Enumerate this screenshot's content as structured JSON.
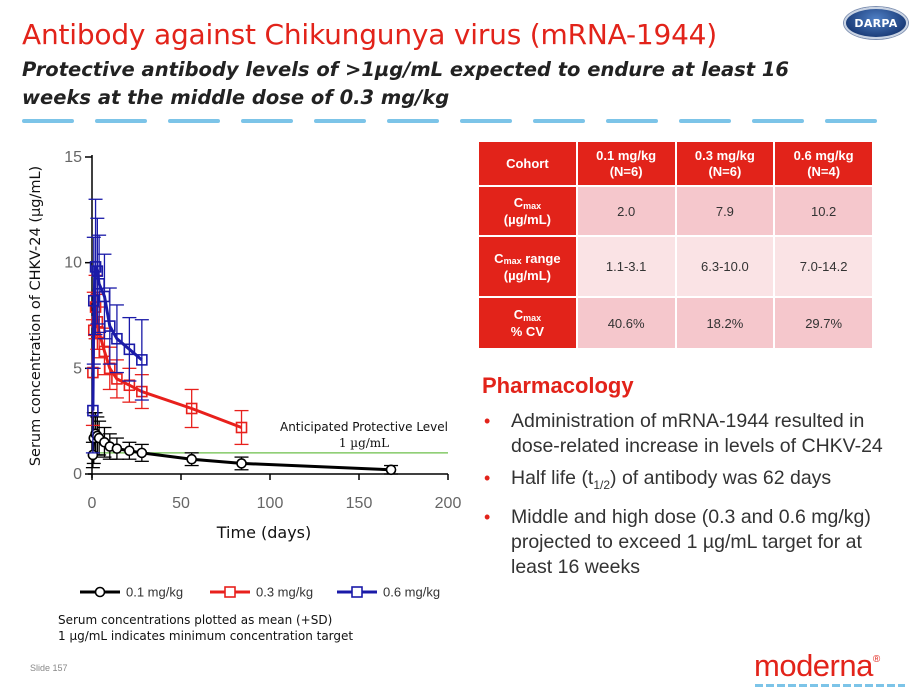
{
  "header": {
    "title": "Antibody against Chikungunya virus (mRNA-1944)",
    "subtitle": "Protective antibody levels of >1µg/mL expected to endure at least 16 weeks at the middle dose of 0.3 mg/kg",
    "logo_text": "DARPA"
  },
  "chart_data": {
    "type": "line",
    "xlabel": "Time (days)",
    "ylabel": "Serum concentration of CHKV-24 (µg/mL)",
    "xlim": [
      0,
      200
    ],
    "ylim": [
      0,
      15
    ],
    "xticks": [
      0,
      50,
      100,
      150,
      200
    ],
    "yticks": [
      0,
      5,
      10,
      15
    ],
    "grid": false,
    "legend_position": "bottom",
    "series": [
      {
        "name": "0.1 mg/kg",
        "color": "#000000",
        "points": [
          {
            "x": 0.5,
            "y": 0.9,
            "sd": 0.6
          },
          {
            "x": 1,
            "y": 1.7,
            "sd": 1.2
          },
          {
            "x": 2,
            "y": 1.9,
            "sd": 1.0
          },
          {
            "x": 3,
            "y": 1.8,
            "sd": 0.9
          },
          {
            "x": 4,
            "y": 1.7,
            "sd": 0.8
          },
          {
            "x": 7,
            "y": 1.5,
            "sd": 0.7
          },
          {
            "x": 10,
            "y": 1.3,
            "sd": 0.6
          },
          {
            "x": 14,
            "y": 1.2,
            "sd": 0.5
          },
          {
            "x": 21,
            "y": 1.1,
            "sd": 0.4
          },
          {
            "x": 28,
            "y": 1.0,
            "sd": 0.4
          },
          {
            "x": 56,
            "y": 0.7,
            "sd": 0.3
          },
          {
            "x": 84,
            "y": 0.5,
            "sd": 0.3
          },
          {
            "x": 168,
            "y": 0.2,
            "sd": 0.2
          }
        ]
      },
      {
        "name": "0.3 mg/kg",
        "color": "#e8201c",
        "points": [
          {
            "x": 0.5,
            "y": 4.8,
            "sd": 2.5
          },
          {
            "x": 1,
            "y": 6.8,
            "sd": 1.8
          },
          {
            "x": 2,
            "y": 7.9,
            "sd": 1.5
          },
          {
            "x": 3,
            "y": 7.2,
            "sd": 1.3
          },
          {
            "x": 4,
            "y": 6.7,
            "sd": 1.2
          },
          {
            "x": 7,
            "y": 5.8,
            "sd": 1.1
          },
          {
            "x": 10,
            "y": 5.0,
            "sd": 1.0
          },
          {
            "x": 14,
            "y": 4.5,
            "sd": 0.9
          },
          {
            "x": 21,
            "y": 4.2,
            "sd": 0.8
          },
          {
            "x": 28,
            "y": 3.9,
            "sd": 0.8
          },
          {
            "x": 56,
            "y": 3.1,
            "sd": 0.9
          },
          {
            "x": 84,
            "y": 2.2,
            "sd": 0.8
          }
        ]
      },
      {
        "name": "0.6 mg/kg",
        "color": "#1a1aa8",
        "points": [
          {
            "x": 0.5,
            "y": 3.0,
            "sd": 2.0
          },
          {
            "x": 1,
            "y": 8.2,
            "sd": 3.0
          },
          {
            "x": 2,
            "y": 9.8,
            "sd": 3.2
          },
          {
            "x": 3,
            "y": 9.6,
            "sd": 2.5
          },
          {
            "x": 4,
            "y": 9.0,
            "sd": 2.3
          },
          {
            "x": 7,
            "y": 8.4,
            "sd": 2.0
          },
          {
            "x": 10,
            "y": 7.0,
            "sd": 1.8
          },
          {
            "x": 14,
            "y": 6.4,
            "sd": 1.6
          },
          {
            "x": 21,
            "y": 5.9,
            "sd": 1.5
          },
          {
            "x": 28,
            "y": 5.4,
            "sd": 1.9
          }
        ]
      }
    ],
    "reference_line": {
      "y": 1,
      "color": "#6cbf4a",
      "label": "Anticipated Protective Level",
      "label2": "1 µg/mL"
    }
  },
  "notes": [
    "Serum concentrations plotted as mean (+SD)",
    "1 µg/mL indicates minimum concentration target"
  ],
  "table": {
    "header": {
      "cohort": "Cohort",
      "col1": "0.1 mg/kg",
      "col1b": "(N=6)",
      "col2": "0.3 mg/kg",
      "col2b": "(N=6)",
      "col3": "0.6 mg/kg",
      "col3b": "(N=4)"
    },
    "rows": [
      {
        "label_main": "C",
        "label_sub": "max",
        "label_tail": "",
        "label2": "(µg/mL)",
        "values": [
          "2.0",
          "7.9",
          "10.2"
        ]
      },
      {
        "label_main": "C",
        "label_sub": "max",
        "label_tail": " range",
        "label2": "(µg/mL)",
        "values": [
          "1.1-3.1",
          "6.3-10.0",
          "7.0-14.2"
        ]
      },
      {
        "label_main": "C",
        "label_sub": "max",
        "label_tail": "",
        "label2": "% CV",
        "values": [
          "40.6%",
          "18.2%",
          "29.7%"
        ]
      }
    ]
  },
  "pharmacology": {
    "heading": "Pharmacology",
    "b1": "Administration of mRNA-1944 resulted in dose-related increase in levels of CHKV-24",
    "b2_pre": "Half life (t",
    "b2_sub": "1/2",
    "b2_post": ") of antibody was 62 days",
    "b3": "Middle and high dose (0.3 and 0.6 mg/kg) projected to exceed 1 µg/mL target for at least 16 weeks"
  },
  "footer": {
    "slide": "Slide 157",
    "brand": "moderna",
    "brand_mark": "®"
  }
}
